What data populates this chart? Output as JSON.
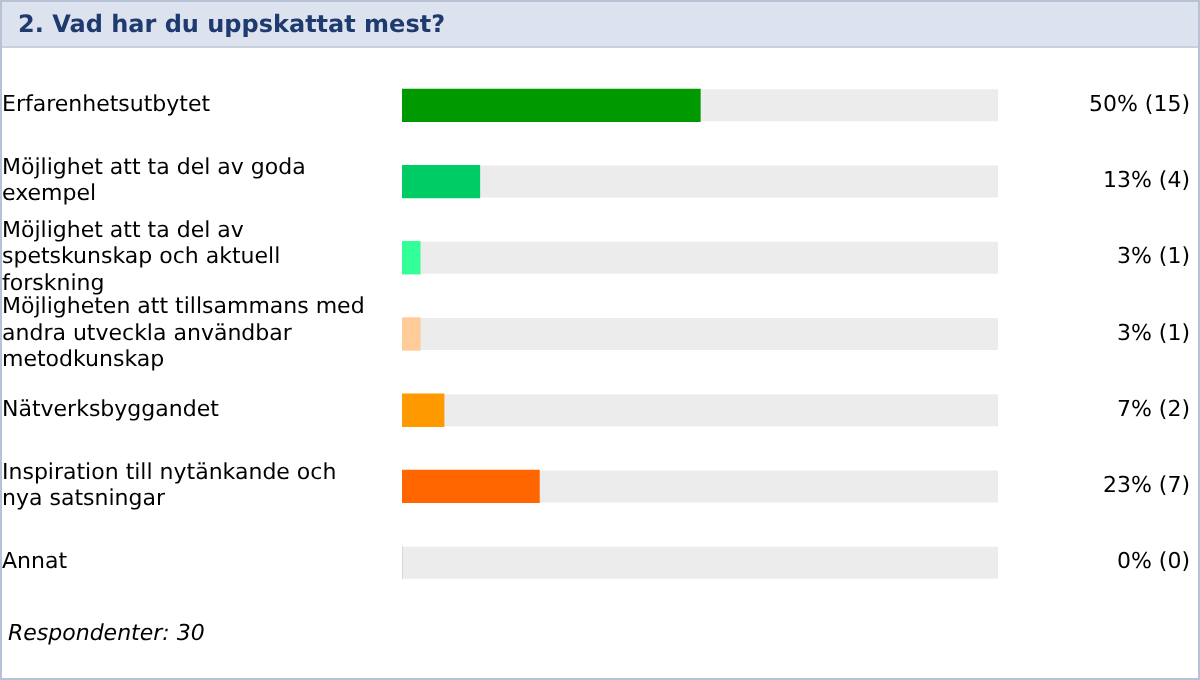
{
  "chart_data": {
    "type": "bar",
    "orientation": "horizontal",
    "title": "2. Vad har du uppskattat mest?",
    "categories": [
      "Erfarenhetsutbytet",
      "Möjlighet att ta del av goda exempel",
      "Möjlighet att ta del av spetskunskap och aktuell forskning",
      "Möjligheten att tillsammans med andra utveckla användbar metodkunskap",
      "Nätverksbyggandet",
      "Inspiration till nytänkande och nya satsningar",
      "Annat"
    ],
    "values": [
      50,
      13,
      3,
      3,
      7,
      23,
      0
    ],
    "colors": [
      "#009900",
      "#00cc66",
      "#33ff99",
      "#ffcc99",
      "#ff9900",
      "#ff6600",
      "#cccccc"
    ],
    "value_labels": [
      "50% (15)",
      "13% (4)",
      "3% (1)",
      "3% (1)",
      "7% (2)",
      "23% (7)",
      "0% (0)"
    ],
    "xlim": [
      0,
      100
    ],
    "tick_labels": "y",
    "grid": false,
    "legend": false,
    "annotations": [
      "Respondenter: 30"
    ]
  }
}
